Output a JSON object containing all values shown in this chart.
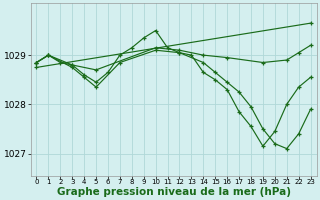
{
  "bg_color": "#d4efef",
  "grid_color": "#b0d8d8",
  "line_color": "#1a6b1a",
  "xlabel": "Graphe pression niveau de la mer (hPa)",
  "xlabel_fontsize": 7.5,
  "xlim": [
    -0.5,
    23.5
  ],
  "ylim": [
    1026.55,
    1030.05
  ],
  "yticks": [
    1027,
    1028,
    1029
  ],
  "xticks": [
    0,
    1,
    2,
    3,
    4,
    5,
    6,
    7,
    8,
    9,
    10,
    11,
    12,
    13,
    14,
    15,
    16,
    17,
    18,
    19,
    20,
    21,
    22,
    23
  ],
  "series": [
    {
      "x": [
        0,
        1,
        2,
        3,
        4,
        5,
        6,
        7,
        8,
        9,
        10,
        11,
        12,
        13,
        14,
        15,
        16,
        17,
        18,
        19,
        20,
        21,
        22,
        23
      ],
      "y": [
        1028.85,
        1029.0,
        1028.85,
        1028.8,
        1028.6,
        1028.45,
        1028.65,
        1029.0,
        1029.15,
        1029.35,
        1029.5,
        1029.15,
        1029.05,
        1029.0,
        1028.65,
        1028.5,
        1028.3,
        1027.85,
        1027.55,
        1027.15,
        1027.45,
        1028.0,
        1028.35,
        1028.55
      ]
    },
    {
      "x": [
        0,
        23
      ],
      "y": [
        1028.75,
        1029.65
      ]
    },
    {
      "x": [
        0,
        1,
        3,
        5,
        10,
        12,
        14,
        16,
        19,
        21,
        22,
        23
      ],
      "y": [
        1028.85,
        1029.0,
        1028.8,
        1028.7,
        1029.15,
        1029.1,
        1029.0,
        1028.95,
        1028.85,
        1028.9,
        1029.05,
        1029.2
      ]
    },
    {
      "x": [
        0,
        1,
        3,
        4,
        5,
        7,
        10,
        12,
        14,
        15,
        16,
        17,
        18,
        19,
        20,
        21,
        22,
        23
      ],
      "y": [
        1028.85,
        1029.0,
        1028.75,
        1028.55,
        1028.35,
        1028.85,
        1029.1,
        1029.05,
        1028.85,
        1028.65,
        1028.45,
        1028.25,
        1027.95,
        1027.5,
        1027.2,
        1027.1,
        1027.4,
        1027.9
      ]
    }
  ]
}
